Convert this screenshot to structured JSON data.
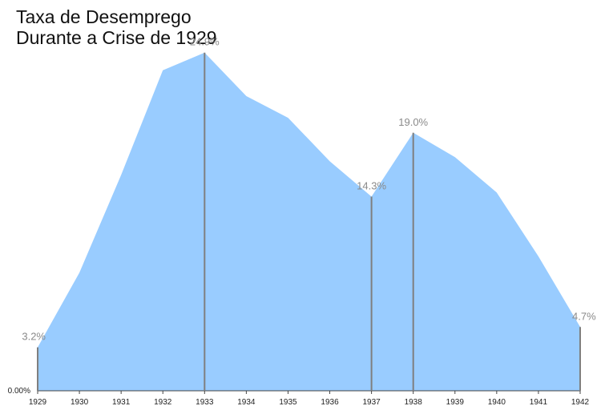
{
  "title_line1": "Taxa de Desemprego",
  "title_line2": "Durante a Crise de 1929",
  "chart_data": {
    "type": "area",
    "title": "Taxa de Desemprego Durante a Crise de 1929",
    "x": [
      1929,
      1930,
      1931,
      1932,
      1933,
      1934,
      1935,
      1936,
      1937,
      1938,
      1939,
      1940,
      1941,
      1942
    ],
    "y": [
      3.2,
      8.7,
      15.9,
      23.6,
      24.9,
      21.7,
      20.1,
      16.9,
      14.3,
      19.0,
      17.2,
      14.6,
      9.9,
      4.7
    ],
    "x_tick_labels": [
      "1929",
      "1930",
      "1931",
      "1932",
      "1933",
      "1934",
      "1935",
      "1936",
      "1937",
      "1938",
      "1939",
      "1940",
      "1941",
      "1942"
    ],
    "y_tick_label": "0.00%",
    "ylim": [
      0,
      26.3
    ],
    "annotations": [
      {
        "x": 1929,
        "label": "3.2%"
      },
      {
        "x": 1933,
        "label": "24.9%"
      },
      {
        "x": 1937,
        "label": "14.3%"
      },
      {
        "x": 1938,
        "label": "19.0%"
      },
      {
        "x": 1942,
        "label": "4.7%"
      }
    ],
    "fill_color": "#99ccff",
    "marker_color": "#7f7f7f",
    "grid": false,
    "legend": "none"
  }
}
